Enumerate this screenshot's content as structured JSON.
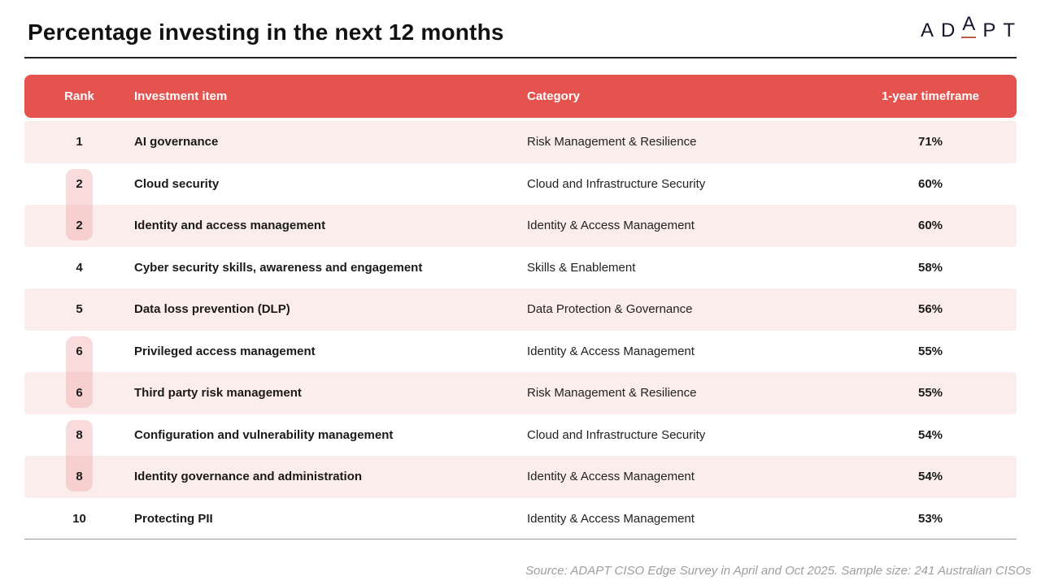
{
  "header": {
    "title": "Percentage investing in the next 12 months",
    "logo": {
      "name": "ADAPT",
      "letters": [
        "A",
        "D",
        "A",
        "P",
        "T"
      ],
      "accent_color": "#b65b4e"
    }
  },
  "table": {
    "columns": [
      "Rank",
      "Investment item",
      "Category",
      "1-year timeframe"
    ],
    "rows": [
      {
        "rank": "1",
        "item": "AI governance",
        "category": "Risk Management & Resilience",
        "timeframe": "71%"
      },
      {
        "rank": "2",
        "item": "Cloud security",
        "category": "Cloud and Infrastructure Security",
        "timeframe": "60%"
      },
      {
        "rank": "2",
        "item": "Identity and access management",
        "category": "Identity & Access Management",
        "timeframe": "60%"
      },
      {
        "rank": "4",
        "item": "Cyber security skills, awareness and engagement",
        "category": "Skills & Enablement",
        "timeframe": "58%"
      },
      {
        "rank": "5",
        "item": "Data loss prevention (DLP)",
        "category": "Data Protection & Governance",
        "timeframe": "56%"
      },
      {
        "rank": "6",
        "item": "Privileged access management",
        "category": "Identity & Access Management",
        "timeframe": "55%"
      },
      {
        "rank": "6",
        "item": "Third party risk management",
        "category": "Risk Management & Resilience",
        "timeframe": "55%"
      },
      {
        "rank": "8",
        "item": "Configuration and vulnerability management",
        "category": "Cloud and Infrastructure Security",
        "timeframe": "54%"
      },
      {
        "rank": "8",
        "item": "Identity governance and administration",
        "category": "Identity & Access Management",
        "timeframe": "54%"
      },
      {
        "rank": "10",
        "item": "Protecting PII",
        "category": "Identity & Access Management",
        "timeframe": "53%"
      }
    ],
    "tied_rank_groups": [
      {
        "rank": "2",
        "row_indexes": [
          1,
          2
        ]
      },
      {
        "rank": "6",
        "row_indexes": [
          5,
          6
        ]
      },
      {
        "rank": "8",
        "row_indexes": [
          7,
          8
        ]
      }
    ]
  },
  "chart_data": {
    "type": "table",
    "title": "Percentage investing in the next 12 months",
    "columns": [
      "Rank",
      "Investment item",
      "Category",
      "1-year timeframe"
    ],
    "categories": [
      "AI governance",
      "Cloud security",
      "Identity and access management",
      "Cyber security skills, awareness and engagement",
      "Data loss prevention (DLP)",
      "Privileged access management",
      "Third party risk management",
      "Configuration and vulnerability management",
      "Identity governance and administration",
      "Protecting PII"
    ],
    "ranks": [
      1,
      2,
      2,
      4,
      5,
      6,
      6,
      8,
      8,
      10
    ],
    "values_percent": [
      71,
      60,
      60,
      58,
      56,
      55,
      55,
      54,
      54,
      53
    ],
    "value_label": "1-year timeframe"
  },
  "footer": {
    "source": "Source: ADAPT CISO Edge Survey in April and Oct 2025. Sample size: 241 Australian CISOs"
  },
  "colors": {
    "header_bg": "#E5534E",
    "row_alt_bg": "#FCEDED",
    "tied_badge_bg": "#F8D6D6",
    "accent": "#B65B4E",
    "divider_dark": "#242424",
    "divider_gray": "#9B9B9B",
    "source_text": "#9E9E9E"
  }
}
